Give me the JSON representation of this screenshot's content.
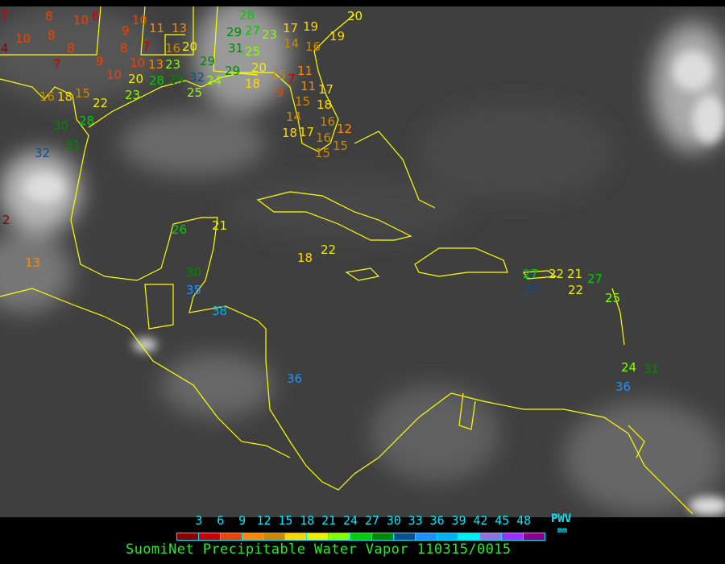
{
  "caption": "SuomiNet Precipitable Water Vapor 110315/0015",
  "legend": {
    "unit_label": "PWV",
    "unit": "mm",
    "ticks": [
      "3",
      "6",
      "9",
      "12",
      "15",
      "18",
      "21",
      "24",
      "27",
      "30",
      "33",
      "36",
      "39",
      "42",
      "45",
      "48"
    ],
    "colors": [
      "#8b0000",
      "#cc0000",
      "#ee4400",
      "#ff8800",
      "#cc8800",
      "#ffd700",
      "#eeee00",
      "#88ff00",
      "#00cc00",
      "#008800",
      "#0d4f8b",
      "#1e90ff",
      "#00b0f0",
      "#00eeee",
      "#9370db",
      "#9b30ff",
      "#8b008b"
    ]
  },
  "map": {
    "background": "GOES infrared satellite imagery",
    "coastline_color": "#ffff00",
    "stations": [
      7,
      10,
      4,
      8,
      10,
      6,
      9,
      10,
      11,
      13,
      8,
      8,
      7,
      9,
      8,
      7,
      10,
      10,
      13,
      23,
      20,
      16,
      29,
      20,
      28,
      29,
      32,
      24,
      23,
      25,
      16,
      18,
      15,
      22,
      30,
      28,
      31,
      32,
      28,
      29,
      27,
      23,
      31,
      25,
      20,
      29,
      18,
      17,
      19,
      14,
      16,
      19,
      20,
      15,
      7,
      9,
      11,
      11,
      17,
      15,
      18,
      16,
      14,
      17,
      16,
      12,
      18,
      15,
      15,
      26,
      21,
      18,
      22,
      30,
      35,
      38,
      36,
      27,
      32,
      22,
      21,
      22,
      27,
      25,
      24,
      31,
      36,
      2,
      13
    ]
  }
}
